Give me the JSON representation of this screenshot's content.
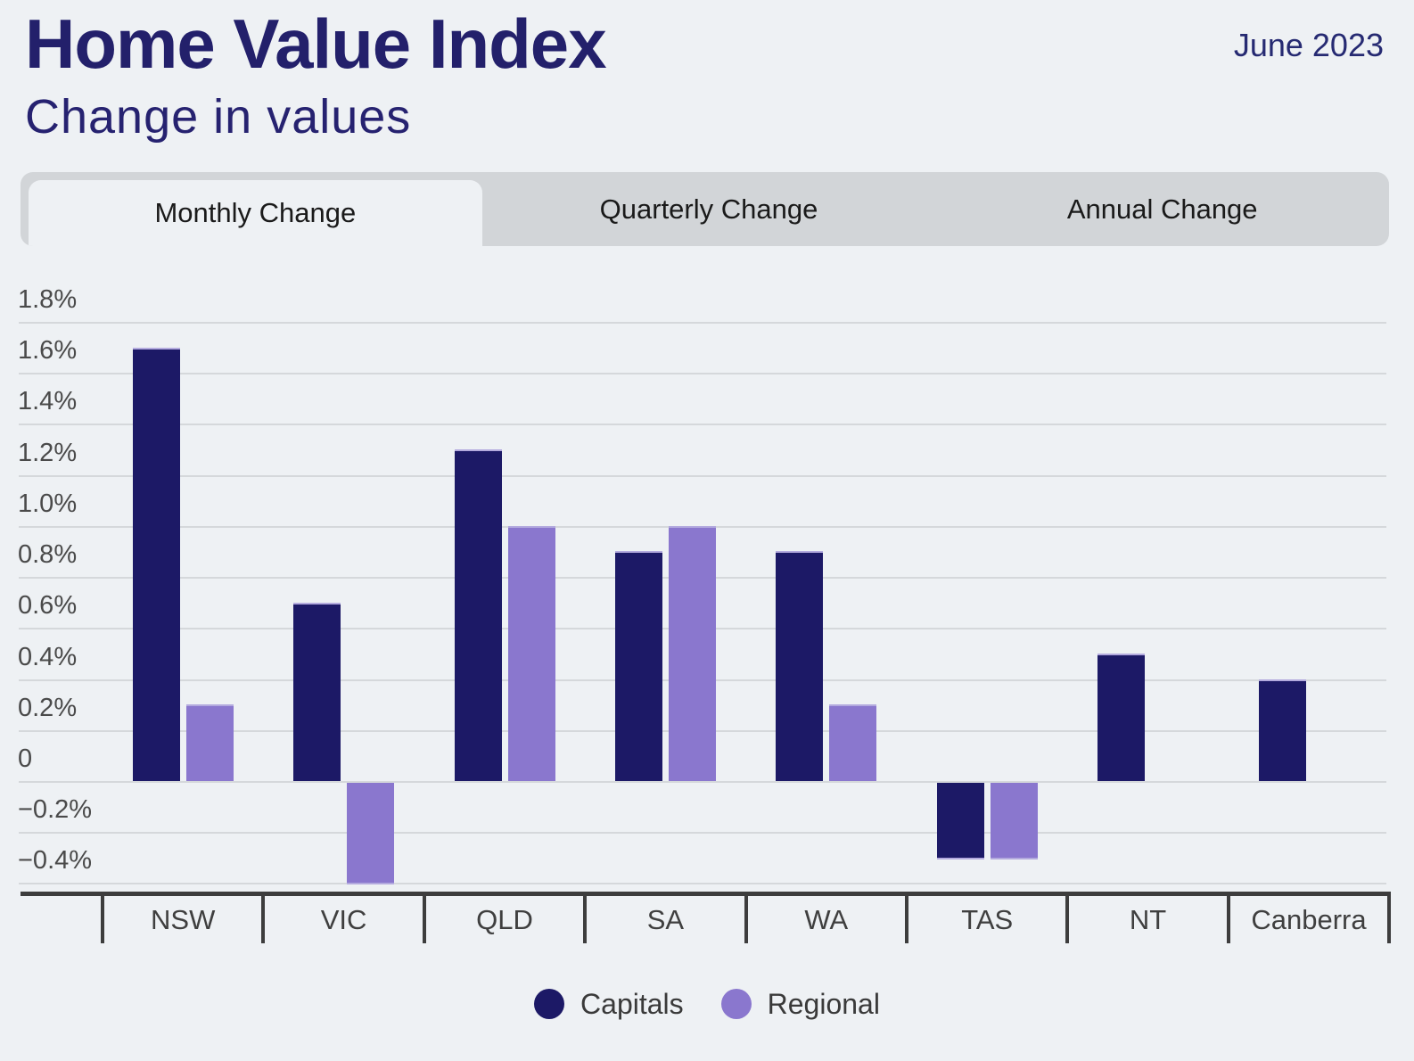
{
  "header": {
    "title": "Home Value Index",
    "subtitle": "Change in values",
    "date": "June 2023"
  },
  "tabs": [
    {
      "label": "Monthly Change",
      "active": true
    },
    {
      "label": "Quarterly Change",
      "active": false
    },
    {
      "label": "Annual Change",
      "active": false
    }
  ],
  "colors": {
    "background": "#eef1f4",
    "navy_text": "#23206b",
    "capitals": "#1c1966",
    "regional": "#8a77ce",
    "bar_edge_highlight": "#b3aade",
    "tab_bar": "#d2d5d8",
    "gridline": "#d5d8db",
    "axis": "#3d3d3d",
    "tick_text": "#4a4a4a"
  },
  "chart_data": {
    "type": "bar",
    "title": "Home Value Index",
    "subtitle": "Change in values",
    "period": "June 2023",
    "active_view": "Monthly Change",
    "categories": [
      "NSW",
      "VIC",
      "QLD",
      "SA",
      "WA",
      "TAS",
      "NT",
      "Canberra"
    ],
    "series": [
      {
        "name": "Capitals",
        "color": "#1c1966",
        "values": [
          1.7,
          0.7,
          1.3,
          0.9,
          0.9,
          -0.3,
          0.5,
          0.4
        ]
      },
      {
        "name": "Regional",
        "color": "#8a77ce",
        "values": [
          0.3,
          -0.4,
          1.0,
          1.0,
          0.3,
          -0.3,
          null,
          null
        ]
      }
    ],
    "unit": "%",
    "yticks": [
      "1.8%",
      "1.6%",
      "1.4%",
      "1.2%",
      "1.0%",
      "0.8%",
      "0.6%",
      "0.4%",
      "0.2%",
      "0",
      "−0.2%",
      "−0.4%"
    ],
    "ytick_values": [
      1.8,
      1.6,
      1.4,
      1.2,
      1.0,
      0.8,
      0.6,
      0.4,
      0.2,
      0,
      -0.2,
      -0.4
    ],
    "ylim": [
      -0.43,
      1.98
    ],
    "grid": true,
    "legend_position": "bottom"
  }
}
